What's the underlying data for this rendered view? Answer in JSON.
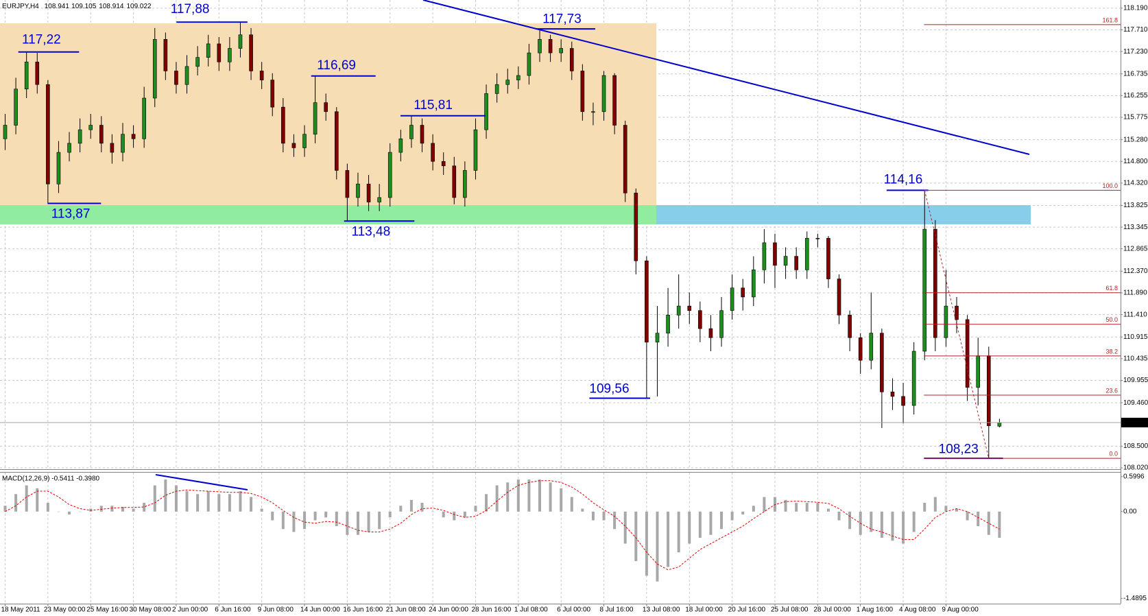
{
  "header": {
    "symbol": "EURJPY,H4"
  },
  "chart_data": [
    {
      "type": "candlestick",
      "categories": [
        "18 May 2011",
        null,
        null,
        null,
        "23 May 00:00",
        null,
        null,
        null,
        "25 May 16:00",
        null,
        null,
        null,
        "30 May 08:00",
        null,
        null,
        null,
        "2 Jun 00:00",
        null,
        null,
        null,
        "6 Jun 16:00",
        null,
        null,
        null,
        "9 Jun 08:00",
        null,
        null,
        null,
        "14 Jun 00:00",
        null,
        null,
        null,
        "16 Jun 16:00",
        null,
        null,
        null,
        "21 Jun 08:00",
        null,
        null,
        null,
        "24 Jun 00:00",
        null,
        null,
        null,
        "28 Jun 16:00",
        null,
        null,
        null,
        "1 Jul 08:00",
        null,
        null,
        null,
        "6 Jul 00:00",
        null,
        null,
        null,
        "8 Jul 16:00",
        null,
        null,
        null,
        "13 Jul 08:00",
        null,
        null,
        null,
        "18 Jul 00:00",
        null,
        null,
        null,
        "20 Jul 16:00",
        null,
        null,
        null,
        "25 Jul 08:00",
        null,
        null,
        null,
        "28 Jul 00:00",
        null,
        null,
        null,
        "1 Aug 16:00",
        null,
        null,
        null,
        "4 Aug 08:00",
        null,
        null,
        null,
        "9 Aug 00:00",
        null,
        null,
        null,
        null,
        null
      ],
      "open": [
        115.3,
        115.6,
        116.4,
        117.0,
        116.5,
        114.3,
        115.0,
        115.2,
        115.5,
        115.6,
        115.2,
        115.0,
        115.4,
        115.3,
        116.2,
        117.5,
        116.8,
        116.5,
        116.9,
        117.1,
        117.4,
        117.0,
        117.3,
        117.6,
        116.8,
        116.6,
        116.0,
        115.2,
        115.1,
        115.4,
        116.1,
        115.9,
        114.6,
        114.0,
        114.3,
        113.9,
        114.0,
        115.0,
        115.3,
        115.6,
        115.2,
        114.8,
        114.7,
        114.0,
        114.6,
        115.5,
        116.3,
        116.5,
        116.6,
        116.7,
        117.2,
        117.5,
        117.2,
        117.3,
        116.8,
        115.9,
        115.9,
        116.7,
        115.6,
        114.1,
        112.6,
        110.8,
        111.0,
        111.4,
        111.6,
        111.5,
        111.1,
        110.9,
        111.5,
        112.0,
        111.8,
        112.4,
        113.0,
        112.5,
        112.7,
        112.4,
        113.1,
        113.1,
        112.2,
        111.4,
        110.9,
        110.4,
        111.0,
        109.7,
        109.6,
        109.4,
        110.6,
        113.3,
        110.9,
        111.6,
        111.3,
        109.8,
        110.5,
        108.941
      ],
      "high": [
        115.85,
        116.65,
        117.22,
        117.2,
        116.6,
        115.25,
        115.45,
        115.75,
        115.85,
        115.8,
        115.4,
        115.65,
        115.6,
        116.45,
        117.75,
        117.65,
        117.0,
        117.15,
        117.35,
        117.6,
        117.55,
        117.55,
        117.88,
        117.75,
        117.0,
        116.75,
        116.2,
        115.4,
        115.6,
        116.69,
        116.3,
        116.0,
        114.75,
        114.55,
        114.5,
        114.3,
        115.2,
        115.5,
        115.81,
        115.75,
        115.4,
        115.0,
        114.9,
        114.8,
        115.75,
        116.5,
        116.75,
        116.85,
        116.9,
        117.4,
        117.73,
        117.6,
        117.5,
        117.45,
        116.95,
        116.1,
        116.8,
        116.75,
        115.7,
        114.2,
        112.7,
        111.6,
        112.0,
        112.3,
        111.9,
        111.7,
        111.4,
        111.8,
        112.3,
        112.2,
        112.7,
        113.3,
        113.2,
        112.9,
        112.9,
        113.25,
        113.2,
        113.15,
        112.3,
        111.5,
        111.0,
        111.9,
        111.1,
        110.0,
        109.9,
        110.8,
        114.16,
        113.5,
        112.4,
        111.8,
        111.4,
        110.9,
        110.7,
        109.105
      ],
      "low": [
        115.05,
        115.4,
        116.2,
        116.3,
        113.87,
        114.1,
        114.8,
        115.0,
        115.3,
        115.0,
        114.75,
        114.8,
        115.1,
        115.1,
        116.0,
        116.6,
        116.3,
        116.3,
        116.7,
        116.9,
        116.8,
        116.8,
        117.1,
        116.6,
        116.4,
        115.8,
        115.0,
        114.9,
        114.9,
        115.2,
        115.7,
        114.4,
        113.48,
        113.8,
        113.7,
        113.7,
        113.8,
        114.8,
        115.1,
        115.0,
        114.6,
        114.5,
        113.85,
        113.8,
        114.4,
        115.3,
        116.1,
        116.3,
        116.4,
        116.5,
        117.0,
        117.0,
        117.0,
        116.6,
        115.7,
        115.6,
        115.7,
        115.4,
        113.9,
        112.3,
        109.56,
        109.6,
        110.7,
        111.1,
        111.2,
        110.8,
        110.6,
        110.7,
        111.3,
        111.5,
        111.6,
        112.1,
        112.0,
        112.2,
        112.2,
        112.2,
        112.9,
        112.0,
        111.2,
        110.6,
        110.1,
        110.2,
        108.9,
        109.3,
        109.0,
        109.2,
        110.4,
        110.6,
        110.7,
        111.0,
        109.5,
        109.4,
        108.23,
        108.914
      ],
      "close": [
        115.6,
        116.4,
        117.0,
        116.5,
        114.3,
        115.0,
        115.2,
        115.5,
        115.6,
        115.2,
        115.0,
        115.4,
        115.3,
        116.2,
        117.5,
        116.8,
        116.5,
        116.9,
        117.1,
        117.4,
        117.0,
        117.3,
        117.6,
        116.8,
        116.6,
        116.0,
        115.2,
        115.1,
        115.4,
        116.1,
        115.9,
        114.6,
        114.0,
        114.3,
        113.9,
        114.0,
        115.0,
        115.3,
        115.6,
        115.2,
        114.8,
        114.7,
        114.0,
        114.6,
        115.5,
        116.3,
        116.5,
        116.6,
        116.7,
        117.2,
        117.5,
        117.2,
        117.3,
        116.8,
        115.9,
        115.9,
        116.7,
        115.6,
        114.1,
        112.6,
        110.8,
        111.0,
        111.4,
        111.6,
        111.5,
        111.1,
        110.9,
        111.5,
        112.0,
        111.8,
        112.4,
        113.0,
        112.5,
        112.7,
        112.4,
        113.1,
        113.1,
        112.2,
        111.4,
        110.9,
        110.4,
        111.0,
        109.7,
        109.6,
        109.4,
        110.6,
        113.3,
        110.9,
        111.6,
        111.3,
        109.8,
        110.5,
        108.95,
        109.022
      ],
      "up_color": "#1e8c1e",
      "down_color": "#800000",
      "ylim": [
        107.99,
        118.37
      ],
      "yticks": [
        {
          "value": 118.19,
          "label": "118.190"
        },
        {
          "value": 117.71,
          "label": "117.710"
        },
        {
          "value": 117.23,
          "label": "117.230"
        },
        116.735,
        116.255,
        115.775,
        {
          "value": 115.28,
          "label": "115.280"
        },
        {
          "value": 114.8,
          "label": "114.800"
        },
        {
          "value": 114.32,
          "label": "114.320"
        },
        113.825,
        113.345,
        112.865,
        {
          "value": 112.37,
          "label": "112.370"
        },
        {
          "value": 111.89,
          "label": "111.890"
        },
        {
          "value": 111.41,
          "label": "111.410"
        },
        110.915,
        110.435,
        109.955,
        {
          "value": 109.46,
          "label": "109.460"
        },
        {
          "value": 108.5,
          "label": "108.500"
        },
        {
          "value": 108.02,
          "label": "108.020"
        }
      ],
      "grid": true,
      "annotations": [
        {
          "value": 117.22,
          "label": "117,22"
        },
        {
          "value": 117.88,
          "label": "117,88"
        },
        {
          "value": 116.69,
          "label": "116,69"
        },
        {
          "value": 115.81,
          "label": "115,81"
        },
        {
          "value": 117.73,
          "label": "117,73"
        },
        {
          "value": 113.87,
          "label": "113,87"
        },
        {
          "value": 113.48,
          "label": "113,48"
        },
        {
          "value": 109.56,
          "label": "109,56"
        },
        {
          "value": 114.16,
          "label": "114,16"
        },
        {
          "value": 108.23,
          "label": "108,23"
        }
      ],
      "fibonacci": {
        "color": "#b22222",
        "levels": [
          161.8,
          {
            "value": 100,
            "label": "100.0"
          },
          61.8,
          {
            "value": 50,
            "label": "50.0"
          },
          38.2,
          23.6,
          {
            "value": 0,
            "label": "0.0"
          }
        ]
      }
    },
    {
      "type": "macd",
      "title": "MACD(12,26,9) -0.5411 -0.3980",
      "histogram": [
        0.1,
        0.3,
        0.45,
        0.4,
        0.15,
        0.0,
        -0.05,
        0.0,
        0.05,
        0.1,
        0.1,
        0.08,
        0.05,
        0.15,
        0.45,
        0.55,
        0.45,
        0.35,
        0.3,
        0.35,
        0.3,
        0.3,
        0.35,
        0.25,
        0.05,
        -0.15,
        -0.3,
        -0.35,
        -0.3,
        -0.15,
        -0.1,
        -0.25,
        -0.4,
        -0.4,
        -0.35,
        -0.3,
        -0.1,
        0.1,
        0.2,
        0.15,
        0.0,
        -0.1,
        -0.15,
        -0.1,
        0.1,
        0.3,
        0.45,
        0.5,
        0.55,
        0.55,
        0.55,
        0.5,
        0.4,
        0.25,
        0.05,
        -0.15,
        -0.15,
        -0.3,
        -0.55,
        -0.85,
        -1.1,
        -1.2,
        -0.95,
        -0.7,
        -0.55,
        -0.45,
        -0.4,
        -0.3,
        -0.15,
        -0.05,
        0.1,
        0.25,
        0.25,
        0.2,
        0.15,
        0.15,
        0.15,
        0.05,
        -0.15,
        -0.3,
        -0.4,
        -0.35,
        -0.45,
        -0.5,
        -0.55,
        -0.35,
        0.15,
        0.25,
        0.1,
        0.05,
        -0.15,
        -0.25,
        -0.4,
        -0.45
      ],
      "signal": [
        0.0,
        0.1,
        0.25,
        0.35,
        0.35,
        0.25,
        0.12,
        0.05,
        0.02,
        0.04,
        0.06,
        0.07,
        0.07,
        0.08,
        0.15,
        0.28,
        0.35,
        0.37,
        0.36,
        0.35,
        0.34,
        0.33,
        0.33,
        0.31,
        0.25,
        0.15,
        0.02,
        -0.1,
        -0.18,
        -0.2,
        -0.17,
        -0.18,
        -0.25,
        -0.32,
        -0.35,
        -0.35,
        -0.3,
        -0.2,
        -0.05,
        0.05,
        0.06,
        0.02,
        -0.05,
        -0.1,
        -0.08,
        0.02,
        0.18,
        0.33,
        0.45,
        0.5,
        0.53,
        0.53,
        0.5,
        0.42,
        0.3,
        0.15,
        0.03,
        -0.08,
        -0.25,
        -0.45,
        -0.7,
        -0.9,
        -1.0,
        -0.95,
        -0.8,
        -0.65,
        -0.55,
        -0.45,
        -0.35,
        -0.25,
        -0.12,
        0.0,
        0.12,
        0.17,
        0.18,
        0.17,
        0.16,
        0.14,
        0.05,
        -0.08,
        -0.2,
        -0.3,
        -0.35,
        -0.42,
        -0.48,
        -0.48,
        -0.3,
        -0.1,
        0.0,
        0.05,
        0.0,
        -0.1,
        -0.2,
        -0.3
      ],
      "hist_color": "#a8a8a8",
      "signal_color": "#e00000",
      "ylim": [
        -1.58,
        0.68
      ],
      "yticks": [
        0.5996,
        {
          "value": 0,
          "label": "0.00"
        },
        -1.4895
      ]
    }
  ]
}
